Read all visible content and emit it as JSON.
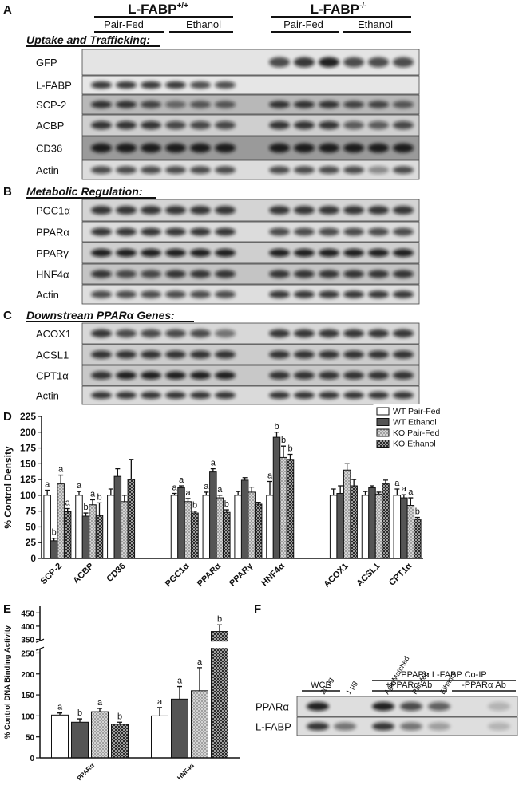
{
  "header": {
    "groups": [
      {
        "name": "L-FABP",
        "sup": "+/+",
        "conditions": [
          "Pair-Fed",
          "Ethanol"
        ]
      },
      {
        "name": "L-FABP",
        "sup": "-/-",
        "conditions": [
          "Pair-Fed",
          "Ethanol"
        ]
      }
    ]
  },
  "panels": {
    "A": {
      "letter": "A",
      "title": "Uptake and Trafficking:",
      "rows": [
        "GFP",
        "L-FABP",
        "SCP-2",
        "ACBP",
        "CD36",
        "Actin"
      ]
    },
    "B": {
      "letter": "B",
      "title": "Metabolic Regulation:",
      "rows": [
        "PGC1α",
        "PPARα",
        "PPARγ",
        "HNF4α",
        "Actin"
      ]
    },
    "C": {
      "letter": "C",
      "title": "Downstream PPARα Genes:",
      "rows": [
        "ACOX1",
        "ACSL1",
        "CPT1α",
        "Actin"
      ]
    }
  },
  "chart_data": [
    {
      "type": "bar",
      "panel": "D",
      "ylabel": "% Control Density",
      "categories": [
        "SCP-2",
        "ACBP",
        "CD36",
        null,
        "PGC1α",
        "PPARα",
        "PPARγ",
        "HNF4α",
        null,
        "ACOX1",
        "ACSL1",
        "CPT1α"
      ],
      "ylim": [
        0,
        225
      ],
      "yticks": [
        0,
        25,
        50,
        75,
        100,
        125,
        150,
        175,
        200,
        225
      ],
      "legend": "top-right",
      "series": [
        {
          "name": "WT Pair-Fed",
          "color": "#ffffff",
          "pattern": "solid",
          "values": [
            100,
            100,
            100,
            null,
            100,
            100,
            100,
            100,
            null,
            100,
            100,
            100
          ],
          "errors": [
            8,
            6,
            10,
            null,
            3,
            5,
            6,
            22,
            null,
            10,
            6,
            10
          ],
          "letters": [
            "a",
            "a",
            null,
            null,
            "a",
            "a",
            null,
            "a",
            null,
            null,
            null,
            "a"
          ]
        },
        {
          "name": "WT Ethanol",
          "color": "#555555",
          "pattern": "solid",
          "values": [
            28,
            67,
            130,
            null,
            112,
            137,
            124,
            192,
            null,
            103,
            112,
            96
          ],
          "errors": [
            4,
            5,
            12,
            null,
            3,
            5,
            4,
            8,
            null,
            12,
            3,
            5
          ],
          "letters": [
            "b",
            "b",
            null,
            null,
            "a",
            "a",
            null,
            "b",
            null,
            null,
            null,
            "a"
          ]
        },
        {
          "name": "KO Pair-Fed",
          "color": "#a0a0a0",
          "pattern": "checker",
          "values": [
            118,
            85,
            90,
            null,
            90,
            96,
            105,
            160,
            null,
            140,
            102,
            84
          ],
          "errors": [
            14,
            8,
            10,
            null,
            5,
            4,
            8,
            18,
            null,
            10,
            3,
            12
          ],
          "letters": [
            "a",
            "a",
            null,
            null,
            "a",
            "a",
            null,
            "b",
            null,
            null,
            null,
            "a"
          ]
        },
        {
          "name": "KO Ethanol",
          "color": "#2a2a2a",
          "pattern": "checker",
          "values": [
            74,
            68,
            125,
            null,
            72,
            73,
            86,
            157,
            null,
            115,
            118,
            62
          ],
          "errors": [
            5,
            20,
            32,
            null,
            3,
            4,
            3,
            8,
            null,
            10,
            6,
            3
          ],
          "letters": [
            "a",
            "b",
            null,
            null,
            "b",
            "b",
            null,
            "b",
            null,
            null,
            null,
            "b"
          ]
        }
      ]
    },
    {
      "type": "bar",
      "panel": "E",
      "ylabel": "% Control DNA Binding Activity",
      "categories": [
        "PPARα",
        "HNF4α"
      ],
      "ylim": [
        0,
        475
      ],
      "axis_break": [
        260,
        345
      ],
      "yticks": [
        0,
        50,
        100,
        150,
        200,
        250,
        350,
        400,
        450
      ],
      "series": [
        {
          "color": "#ffffff",
          "pattern": "solid",
          "values": [
            102,
            100
          ],
          "errors": [
            5,
            20
          ],
          "letters": [
            "a",
            "a"
          ]
        },
        {
          "color": "#555555",
          "pattern": "solid",
          "values": [
            85,
            140
          ],
          "errors": [
            8,
            30
          ],
          "letters": [
            "b",
            "a"
          ]
        },
        {
          "color": "#a0a0a0",
          "pattern": "checker",
          "values": [
            110,
            160
          ],
          "errors": [
            8,
            55
          ],
          "letters": [
            "a",
            "a"
          ]
        },
        {
          "color": "#2a2a2a",
          "pattern": "checker",
          "values": [
            80,
            380
          ],
          "errors": [
            5,
            25
          ],
          "letters": [
            "b",
            "b"
          ]
        }
      ]
    }
  ],
  "panel_f": {
    "letter": "F",
    "title": "PPARα L-FABP Co-IP",
    "groups": [
      "WCE",
      "+PPARα Ab",
      "-PPARα Ab"
    ],
    "lanes": [
      "20 μg",
      "1 μg",
      "Age-Matched",
      "Pair-fed",
      "Ethanol"
    ],
    "rows": [
      "PPARα",
      "L-FABP"
    ]
  }
}
